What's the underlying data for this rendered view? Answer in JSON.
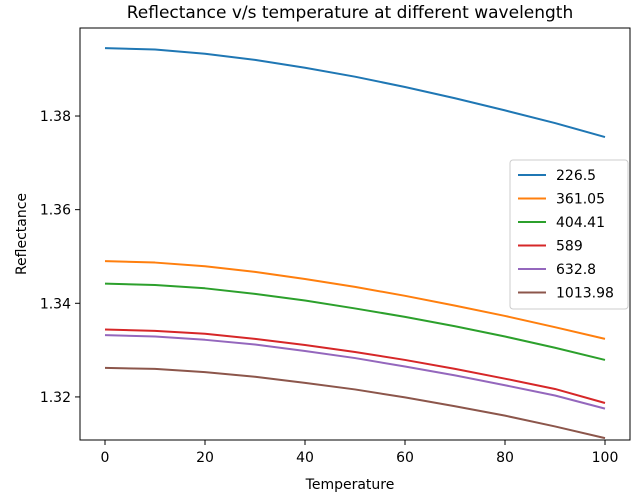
{
  "chart_data": {
    "type": "line",
    "title": "Reflectance v/s temperature at different wavelength",
    "xlabel": "Temperature",
    "ylabel": "Reflectance",
    "xlim": [
      -5,
      105
    ],
    "ylim": [
      1.3108,
      1.3988
    ],
    "xticks": [
      0,
      20,
      40,
      60,
      80,
      100
    ],
    "xtick_labels": [
      "0",
      "20",
      "40",
      "60",
      "80",
      "100"
    ],
    "yticks": [
      1.32,
      1.34,
      1.36,
      1.38
    ],
    "ytick_labels": [
      "1.32",
      "1.34",
      "1.36",
      "1.38"
    ],
    "grid": false,
    "legend_position": "center-right",
    "x": [
      0,
      10,
      20,
      30,
      40,
      50,
      60,
      70,
      80,
      90,
      100
    ],
    "series": [
      {
        "name": "226.5",
        "color": "#1f77b4",
        "values": [
          1.3945,
          1.3942,
          1.3933,
          1.392,
          1.3903,
          1.3884,
          1.3862,
          1.3838,
          1.3812,
          1.3785,
          1.3755
        ]
      },
      {
        "name": "361.05",
        "color": "#ff7f0e",
        "values": [
          1.349,
          1.3487,
          1.3479,
          1.3467,
          1.3452,
          1.3435,
          1.3416,
          1.3395,
          1.3373,
          1.3349,
          1.3324
        ]
      },
      {
        "name": "404.41",
        "color": "#2ca02c",
        "values": [
          1.3442,
          1.3439,
          1.3432,
          1.342,
          1.3406,
          1.3389,
          1.3371,
          1.3351,
          1.3329,
          1.3305,
          1.3279
        ]
      },
      {
        "name": "589",
        "color": "#d62728",
        "values": [
          1.3344,
          1.3341,
          1.3335,
          1.3324,
          1.3311,
          1.3296,
          1.3279,
          1.326,
          1.3239,
          1.3217,
          1.3187
        ]
      },
      {
        "name": "632.8",
        "color": "#9467bd",
        "values": [
          1.3332,
          1.3329,
          1.3322,
          1.3312,
          1.3298,
          1.3283,
          1.3265,
          1.3246,
          1.3225,
          1.3203,
          1.3175
        ]
      },
      {
        "name": "1013.98",
        "color": "#8c564b",
        "values": [
          1.3262,
          1.326,
          1.3253,
          1.3243,
          1.323,
          1.3216,
          1.3199,
          1.318,
          1.316,
          1.3137,
          1.3112
        ]
      }
    ]
  }
}
